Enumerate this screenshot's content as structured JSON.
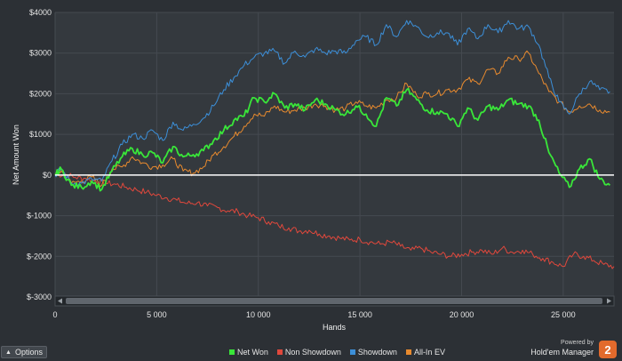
{
  "chart_data": {
    "type": "line",
    "xlabel": "Hands",
    "ylabel": "Net Amount Won",
    "xlim": [
      0,
      27500
    ],
    "ylim": [
      -3000,
      4000
    ],
    "x_ticks": [
      0,
      5000,
      10000,
      15000,
      20000,
      25000
    ],
    "x_tick_labels": [
      "0",
      "5 000",
      "10 000",
      "15 000",
      "20 000",
      "25 000"
    ],
    "y_ticks": [
      -3000,
      -2000,
      -1000,
      0,
      1000,
      2000,
      3000,
      4000
    ],
    "y_tick_labels": [
      "$-3000",
      "$-2000",
      "$-1000",
      "$0",
      "$1000",
      "$2000",
      "$3000",
      "$4000"
    ],
    "grid": true,
    "legend_position": "bottom-center",
    "series": [
      {
        "name": "Net Won",
        "color": "#39e639",
        "x": [
          0,
          300,
          800,
          1300,
          1800,
          2300,
          2800,
          3300,
          3800,
          4300,
          4800,
          5300,
          5800,
          6300,
          6800,
          7300,
          7800,
          8300,
          8800,
          9300,
          9800,
          10300,
          10800,
          11300,
          11800,
          12300,
          12800,
          13300,
          13800,
          14300,
          14800,
          15300,
          15800,
          16300,
          16800,
          17300,
          17800,
          18300,
          18800,
          19300,
          19800,
          20300,
          20800,
          21300,
          21800,
          22300,
          22800,
          23300,
          23800,
          24300,
          24800,
          25300,
          25800,
          26300,
          26800,
          27300
        ],
        "y": [
          0,
          150,
          -250,
          -300,
          -150,
          -350,
          100,
          450,
          650,
          500,
          550,
          300,
          700,
          450,
          500,
          600,
          850,
          1100,
          1350,
          1450,
          1900,
          1800,
          2000,
          1650,
          1750,
          1600,
          1850,
          1750,
          1600,
          1500,
          1700,
          1500,
          1200,
          1900,
          1700,
          2100,
          1850,
          1600,
          1550,
          1500,
          1200,
          1650,
          1350,
          1700,
          1600,
          1850,
          1750,
          1700,
          1350,
          550,
          50,
          -300,
          150,
          400,
          -100,
          -250
        ]
      },
      {
        "name": "Non Showdown",
        "color": "#e0483c",
        "x": [
          0,
          500,
          1000,
          1500,
          2000,
          2500,
          3000,
          3500,
          4000,
          4500,
          5000,
          5500,
          6000,
          6500,
          7000,
          7500,
          8000,
          8500,
          9000,
          9500,
          10000,
          10500,
          11000,
          11500,
          12000,
          12500,
          13000,
          13500,
          14000,
          14500,
          15000,
          15500,
          16000,
          16500,
          17000,
          17500,
          18000,
          18500,
          19000,
          19500,
          20000,
          20500,
          21000,
          21500,
          22000,
          22500,
          23000,
          23500,
          24000,
          24500,
          25000,
          25500,
          26000,
          26500,
          27000,
          27500
        ],
        "y": [
          0,
          20,
          -60,
          -80,
          -150,
          -200,
          -230,
          -300,
          -360,
          -420,
          -500,
          -560,
          -620,
          -700,
          -680,
          -760,
          -800,
          -880,
          -900,
          -1000,
          -1050,
          -1150,
          -1250,
          -1300,
          -1380,
          -1360,
          -1450,
          -1500,
          -1550,
          -1600,
          -1580,
          -1650,
          -1700,
          -1650,
          -1750,
          -1850,
          -1800,
          -1900,
          -1950,
          -2000,
          -1950,
          -1900,
          -1850,
          -1950,
          -1800,
          -1900,
          -1850,
          -1950,
          -2050,
          -2150,
          -2250,
          -1950,
          -2000,
          -2100,
          -2200,
          -2250
        ]
      },
      {
        "name": "Showdown",
        "color": "#3c8fd8",
        "x": [
          0,
          300,
          800,
          1300,
          1800,
          2300,
          2800,
          3300,
          3800,
          4300,
          4800,
          5300,
          5800,
          6300,
          6800,
          7300,
          7800,
          8300,
          8800,
          9300,
          9800,
          10300,
          10800,
          11300,
          11800,
          12300,
          12800,
          13300,
          13800,
          14300,
          14800,
          15300,
          15800,
          16300,
          16800,
          17300,
          17800,
          18300,
          18800,
          19300,
          19800,
          20300,
          20800,
          21300,
          21800,
          22300,
          22800,
          23300,
          23800,
          24300,
          24800,
          25300,
          25800,
          26300,
          26800,
          27300
        ],
        "y": [
          0,
          150,
          -200,
          -200,
          -100,
          -150,
          350,
          750,
          1000,
          900,
          1100,
          850,
          1300,
          1100,
          1250,
          1400,
          1700,
          2100,
          2400,
          2700,
          2900,
          3000,
          3050,
          2750,
          3050,
          2900,
          3100,
          3000,
          3050,
          3000,
          3300,
          3400,
          3200,
          3700,
          3400,
          3800,
          3650,
          3400,
          3500,
          3500,
          3200,
          3600,
          3350,
          3700,
          3500,
          3800,
          3600,
          3650,
          3200,
          2400,
          1800,
          1500,
          2000,
          2300,
          2100,
          2050
        ]
      },
      {
        "name": "All-In EV",
        "color": "#e88a2e",
        "x": [
          0,
          300,
          800,
          1300,
          1800,
          2300,
          2800,
          3300,
          3800,
          4300,
          4800,
          5300,
          5800,
          6300,
          6800,
          7300,
          7800,
          8300,
          8800,
          9300,
          9800,
          10300,
          10800,
          11300,
          11800,
          12300,
          12800,
          13300,
          13800,
          14300,
          14800,
          15300,
          15800,
          16300,
          16800,
          17300,
          17800,
          18300,
          18800,
          19300,
          19800,
          20300,
          20800,
          21300,
          21800,
          22300,
          22800,
          23300,
          23800,
          24300,
          24800,
          25300,
          25800,
          26300,
          26800,
          27300
        ],
        "y": [
          0,
          100,
          -200,
          -150,
          -50,
          -250,
          150,
          200,
          450,
          300,
          200,
          250,
          400,
          100,
          50,
          200,
          500,
          700,
          950,
          1200,
          1500,
          1450,
          1700,
          1550,
          1600,
          1650,
          1750,
          1700,
          1600,
          1650,
          1800,
          1700,
          1650,
          1850,
          1900,
          2250,
          1950,
          2000,
          2000,
          2100,
          2100,
          2350,
          2250,
          2600,
          2500,
          2900,
          2850,
          3000,
          2500,
          2050,
          1800,
          1550,
          1700,
          1750,
          1600,
          1550
        ]
      }
    ],
    "zero_line": {
      "value": 0,
      "color": "#ffffff"
    }
  },
  "controls": {
    "options_label": "Options"
  },
  "branding": {
    "powered_by": "Powered by",
    "product_name": "Hold'em Manager",
    "version_badge": "2"
  }
}
